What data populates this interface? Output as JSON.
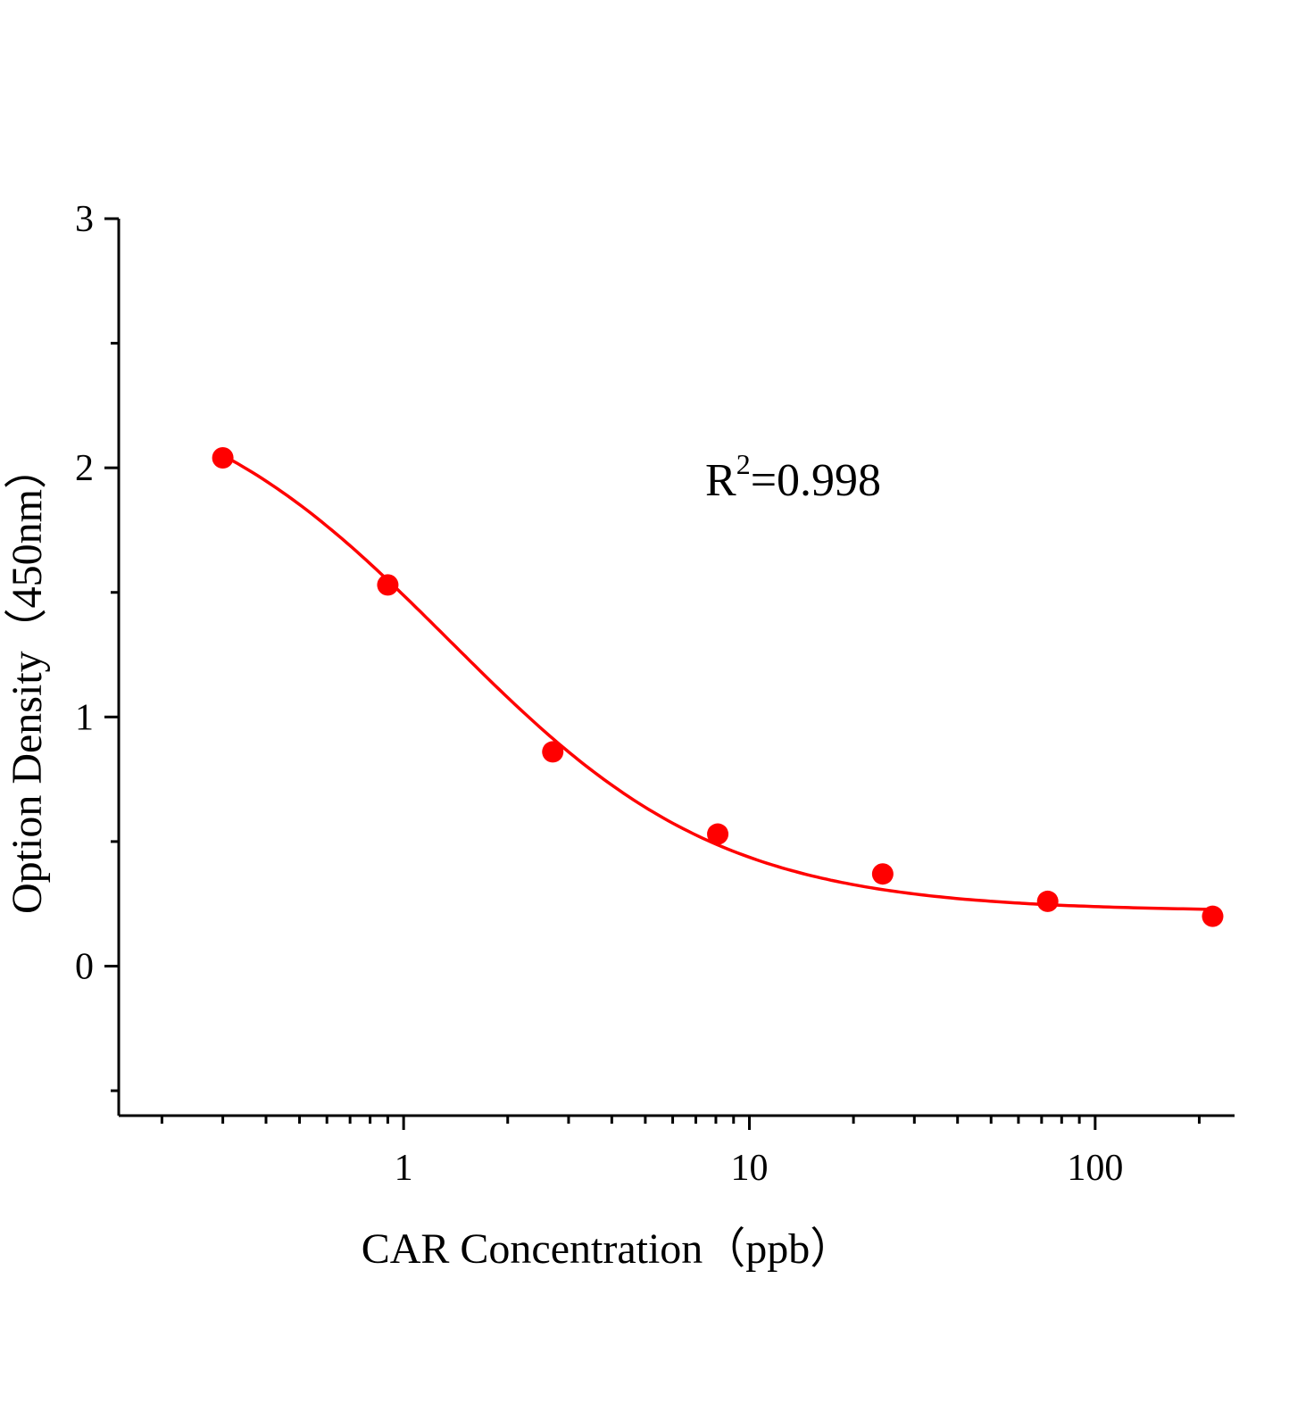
{
  "chart_data": {
    "type": "scatter",
    "xlabel": "CAR Concentration（ppb）",
    "ylabel": "Option Density（450nm）",
    "x_scale": "log",
    "xlim": [
      0.15,
      253
    ],
    "ylim": [
      -0.6,
      3
    ],
    "x_ticks": [
      1,
      10,
      100
    ],
    "x_tick_labels": [
      "1",
      "10",
      "100"
    ],
    "y_ticks": [
      0,
      1,
      2,
      3
    ],
    "y_tick_labels": [
      "0",
      "1",
      "2",
      "3"
    ],
    "y_minor_ticks": [
      -0.5,
      0.5,
      1.5,
      2.5
    ],
    "grid": false,
    "color": "#ff0000",
    "points": {
      "x": [
        0.3,
        0.9,
        2.7,
        8.1,
        24.3,
        72.9,
        218.7
      ],
      "y": [
        2.04,
        1.53,
        0.86,
        0.53,
        0.37,
        0.26,
        0.2
      ]
    },
    "fit": {
      "model": "4PL",
      "top": 2.4,
      "bottom": 0.22,
      "ec50": 1.35,
      "hill": 1.1
    },
    "annotation": {
      "base": "R",
      "sup": "2",
      "rest": "=0.998"
    }
  }
}
